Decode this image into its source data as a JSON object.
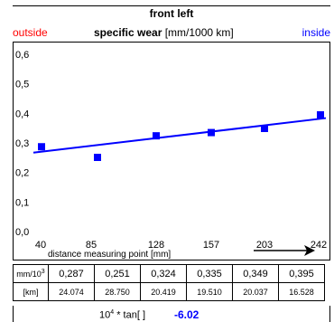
{
  "header": {
    "title": "front left",
    "outside_label": "outside",
    "inside_label": "inside",
    "subtitle_bold": "specific wear",
    "subtitle_unit": "[mm/1000 km]"
  },
  "chart_data": {
    "type": "scatter",
    "title": "front left",
    "subtitle": "specific wear [mm/1000 km]",
    "xlabel": "distance measuring point [mm]",
    "ylabel": "",
    "x_categories": [
      "40",
      "85",
      "128",
      "157",
      "203",
      "242"
    ],
    "y_ticks": [
      "0,6",
      "0,5",
      "0,4",
      "0,3",
      "0,2",
      "0,1",
      "0,0"
    ],
    "ylim": [
      0,
      0.6
    ],
    "grid": false,
    "series": [
      {
        "values": [
          0.287,
          0.251,
          0.324,
          0.335,
          0.349,
          0.395
        ],
        "color": "#0000ff",
        "marker": "square"
      }
    ],
    "trendline": {
      "from": 0.267,
      "to": 0.384,
      "color": "#0000ff"
    },
    "arrow": "right"
  },
  "table": {
    "row1_label": "mm/10",
    "row1_label_sup": "3",
    "row1_values": [
      "0,287",
      "0,251",
      "0,324",
      "0,335",
      "0,349",
      "0,395"
    ],
    "row2_label": "[km]",
    "row2_values": [
      "24.074",
      "28.750",
      "20.419",
      "19.510",
      "20.037",
      "16.528"
    ]
  },
  "tan": {
    "label_base": "10",
    "label_sup": "4",
    "label_rest": " * tan[ ]",
    "value": "-6.02"
  },
  "colors": {
    "accent": "#0000ff",
    "outside": "#ff0000"
  }
}
